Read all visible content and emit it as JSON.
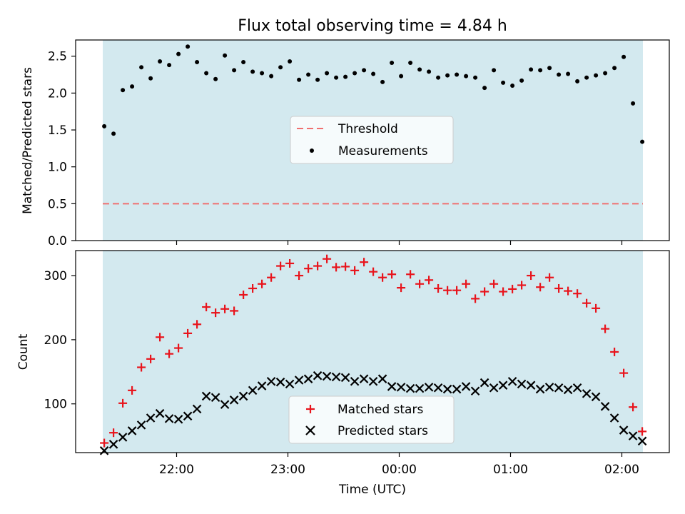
{
  "chart_data": [
    {
      "type": "scatter",
      "title": "Flux total observing time = 4.84 h",
      "ylabel": "Matched/Predicted stars",
      "xlabel": "",
      "ylim": [
        0,
        2.72
      ],
      "yticks": [
        0.0,
        0.5,
        1.0,
        1.5,
        2.0,
        2.5
      ],
      "ytick_labels": [
        "0.0",
        "0.5",
        "1.0",
        "1.5",
        "2.0",
        "2.5"
      ],
      "shaded_region": true,
      "shade_color": "#d3e9ef",
      "legend_position": "center",
      "threshold": {
        "name": "Threshold",
        "value": 0.5,
        "color": "#f07070",
        "style": "dashed"
      },
      "series": [
        {
          "name": "Measurements",
          "marker": "dot",
          "color": "#000000",
          "x": [
            "21:21",
            "21:26",
            "21:31",
            "21:36",
            "21:41",
            "21:46",
            "21:51",
            "21:56",
            "22:01",
            "22:06",
            "22:11",
            "22:16",
            "22:21",
            "22:26",
            "22:31",
            "22:36",
            "22:41",
            "22:46",
            "22:51",
            "22:56",
            "23:01",
            "23:06",
            "23:11",
            "23:16",
            "23:21",
            "23:26",
            "23:31",
            "23:36",
            "23:41",
            "23:46",
            "23:51",
            "23:56",
            "00:01",
            "00:06",
            "00:11",
            "00:16",
            "00:21",
            "00:26",
            "00:31",
            "00:36",
            "00:41",
            "00:46",
            "00:51",
            "00:56",
            "01:01",
            "01:06",
            "01:11",
            "01:16",
            "01:21",
            "01:26",
            "01:31",
            "01:36",
            "01:41",
            "01:46",
            "01:51",
            "01:56",
            "02:01",
            "02:06",
            "02:11"
          ],
          "values": [
            1.55,
            1.45,
            2.04,
            2.09,
            2.35,
            2.2,
            2.43,
            2.38,
            2.53,
            2.63,
            2.42,
            2.27,
            2.19,
            2.51,
            2.31,
            2.42,
            2.29,
            2.27,
            2.23,
            2.35,
            2.43,
            2.18,
            2.25,
            2.18,
            2.27,
            2.21,
            2.22,
            2.27,
            2.31,
            2.26,
            2.15,
            2.41,
            2.23,
            2.41,
            2.32,
            2.29,
            2.21,
            2.24,
            2.25,
            2.23,
            2.21,
            2.07,
            2.31,
            2.14,
            2.1,
            2.17,
            2.32,
            2.31,
            2.34,
            2.25,
            2.26,
            2.16,
            2.21,
            2.24,
            2.27,
            2.34,
            2.49,
            1.86,
            1.34
          ]
        }
      ]
    },
    {
      "type": "scatter",
      "title": "",
      "ylabel": "Count",
      "xlabel": "Time (UTC)",
      "ylim": [
        24,
        339
      ],
      "yticks": [
        100,
        200,
        300
      ],
      "ytick_labels": [
        "100",
        "200",
        "300"
      ],
      "xtick_labels": [
        "22:00",
        "23:00",
        "00:00",
        "01:00",
        "02:00"
      ],
      "shaded_region": true,
      "shade_color": "#d3e9ef",
      "legend_position": "lower center",
      "series": [
        {
          "name": "Matched stars",
          "marker": "plus",
          "color": "#e8141c",
          "x": [
            "21:21",
            "21:26",
            "21:31",
            "21:36",
            "21:41",
            "21:46",
            "21:51",
            "21:56",
            "22:01",
            "22:06",
            "22:11",
            "22:16",
            "22:21",
            "22:26",
            "22:31",
            "22:36",
            "22:41",
            "22:46",
            "22:51",
            "22:56",
            "23:01",
            "23:06",
            "23:11",
            "23:16",
            "23:21",
            "23:26",
            "23:31",
            "23:36",
            "23:41",
            "23:46",
            "23:51",
            "23:56",
            "00:01",
            "00:06",
            "00:11",
            "00:16",
            "00:21",
            "00:26",
            "00:31",
            "00:36",
            "00:41",
            "00:46",
            "00:51",
            "00:56",
            "01:01",
            "01:06",
            "01:11",
            "01:16",
            "01:21",
            "01:26",
            "01:31",
            "01:36",
            "01:41",
            "01:46",
            "01:51",
            "01:56",
            "02:01",
            "02:06",
            "02:11"
          ],
          "values": [
            39,
            55,
            101,
            121,
            157,
            170,
            204,
            178,
            187,
            210,
            224,
            251,
            242,
            248,
            245,
            270,
            280,
            287,
            297,
            315,
            319,
            300,
            311,
            315,
            326,
            313,
            314,
            308,
            321,
            306,
            297,
            302,
            281,
            302,
            287,
            293,
            280,
            277,
            277,
            287,
            264,
            275,
            287,
            275,
            279,
            285,
            300,
            282,
            297,
            280,
            276,
            272,
            257,
            249,
            217,
            181,
            148,
            95,
            57
          ]
        },
        {
          "name": "Predicted stars",
          "marker": "x",
          "color": "#000000",
          "x": [
            "21:21",
            "21:26",
            "21:31",
            "21:36",
            "21:41",
            "21:46",
            "21:51",
            "21:56",
            "22:01",
            "22:06",
            "22:11",
            "22:16",
            "22:21",
            "22:26",
            "22:31",
            "22:36",
            "22:41",
            "22:46",
            "22:51",
            "22:56",
            "23:01",
            "23:06",
            "23:11",
            "23:16",
            "23:21",
            "23:26",
            "23:31",
            "23:36",
            "23:41",
            "23:46",
            "23:51",
            "23:56",
            "00:01",
            "00:06",
            "00:11",
            "00:16",
            "00:21",
            "00:26",
            "00:31",
            "00:36",
            "00:41",
            "00:46",
            "00:51",
            "00:56",
            "01:01",
            "01:06",
            "01:11",
            "01:16",
            "01:21",
            "01:26",
            "01:31",
            "01:36",
            "01:41",
            "01:46",
            "01:51",
            "01:56",
            "02:01",
            "02:06",
            "02:11"
          ],
          "values": [
            27,
            37,
            48,
            58,
            67,
            78,
            85,
            77,
            76,
            81,
            92,
            112,
            110,
            99,
            106,
            112,
            121,
            128,
            135,
            134,
            131,
            137,
            139,
            144,
            143,
            142,
            141,
            135,
            139,
            135,
            139,
            127,
            126,
            124,
            124,
            126,
            125,
            123,
            123,
            127,
            120,
            133,
            125,
            129,
            135,
            131,
            129,
            123,
            126,
            125,
            122,
            125,
            116,
            111,
            96,
            78,
            59,
            50,
            42
          ]
        }
      ]
    }
  ]
}
